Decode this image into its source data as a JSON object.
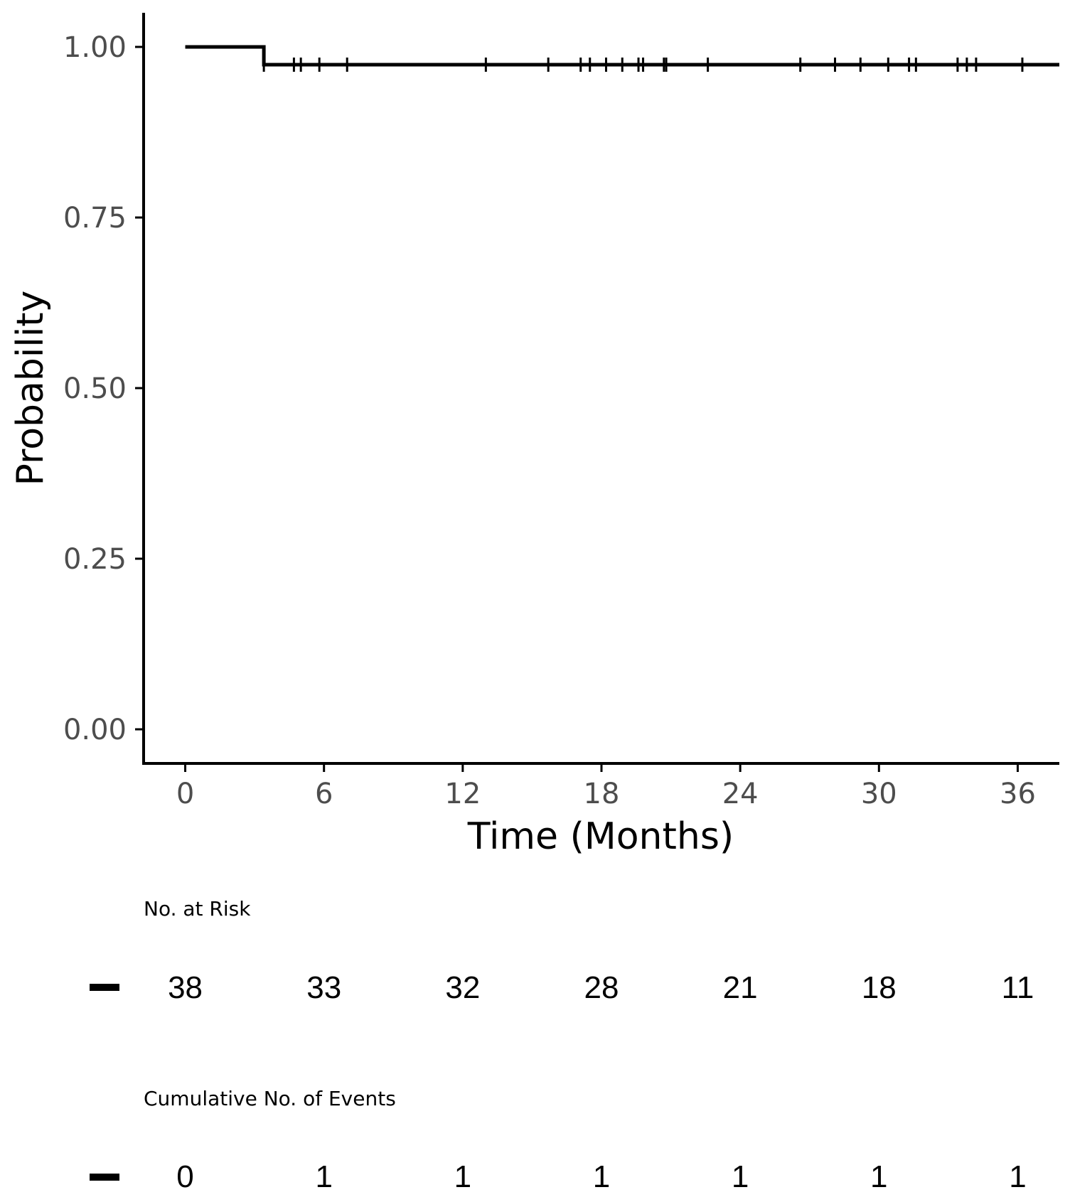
{
  "chart_data": {
    "type": "line",
    "title": "",
    "xlabel": "Time (Months)",
    "ylabel": "Probability",
    "xlim": [
      -1.8,
      37.8
    ],
    "ylim": [
      -0.05,
      1.05
    ],
    "x_ticks": [
      0,
      6,
      12,
      18,
      24,
      30,
      36
    ],
    "x_tick_labels": [
      "0",
      "6",
      "12",
      "18",
      "24",
      "30",
      "36"
    ],
    "y_ticks": [
      0,
      0.25,
      0.5,
      0.75,
      1.0
    ],
    "y_tick_labels": [
      "0.00",
      "0.25",
      "0.50",
      "0.75",
      "1.00"
    ],
    "grid": false,
    "line_color": "#000000",
    "series": [
      {
        "steps": [
          {
            "x": 0,
            "y": 1.0
          },
          {
            "x": 3.4,
            "y": 0.974
          },
          {
            "x": 37.8,
            "y": 0.974
          }
        ],
        "censor_times": [
          3.4,
          4.7,
          5.0,
          5.8,
          7.0,
          13.0,
          15.7,
          17.1,
          17.5,
          18.2,
          18.9,
          19.6,
          19.8,
          20.7,
          20.8,
          22.6,
          26.6,
          28.1,
          29.2,
          30.4,
          31.3,
          31.6,
          33.4,
          33.8,
          34.2,
          36.2
        ]
      }
    ]
  },
  "risk_table": {
    "title": "No. at Risk",
    "times": [
      0,
      6,
      12,
      18,
      24,
      30,
      36
    ],
    "values": [
      "38",
      "33",
      "32",
      "28",
      "21",
      "18",
      "11"
    ]
  },
  "events_table": {
    "title": "Cumulative No. of Events",
    "times": [
      0,
      6,
      12,
      18,
      24,
      30,
      36
    ],
    "values": [
      "0",
      "1",
      "1",
      "1",
      "1",
      "1",
      "1"
    ]
  }
}
